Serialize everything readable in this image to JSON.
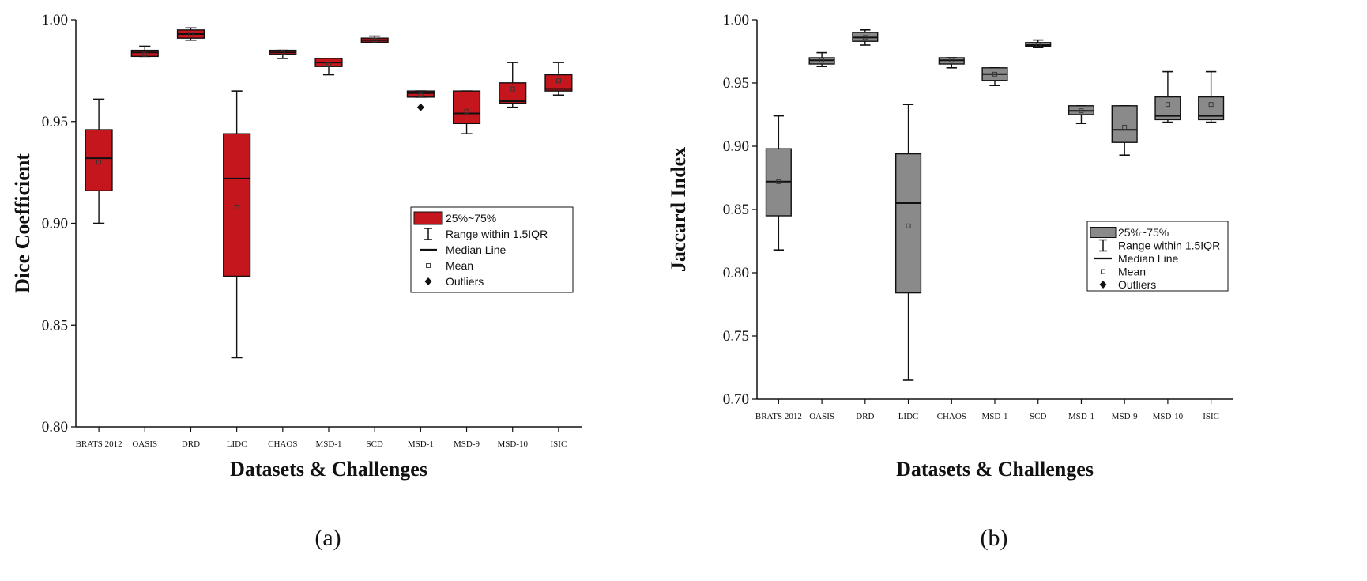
{
  "chart_data": [
    {
      "type": "box",
      "panel_label": "(a)",
      "ylabel": "Dice Coefficient",
      "xlabel": "Datasets & Challenges",
      "ylim": [
        0.8,
        1.0
      ],
      "y_ticks": [
        "0.80",
        "0.85",
        "0.90",
        "0.95",
        "1.00"
      ],
      "categories": [
        "BRATS 2012",
        "OASIS",
        "DRD",
        "LIDC",
        "CHAOS",
        "MSD-1",
        "SCD",
        "MSD-1",
        "MSD-9",
        "MSD-10",
        "ISIC"
      ],
      "box_color": "#c4161c",
      "boxes": [
        {
          "whisker_low": 0.9,
          "q1": 0.916,
          "median": 0.932,
          "q3": 0.946,
          "whisker_high": 0.961,
          "mean": 0.93,
          "outliers": []
        },
        {
          "whisker_low": 0.982,
          "q1": 0.982,
          "median": 0.984,
          "q3": 0.985,
          "whisker_high": 0.987,
          "mean": 0.983,
          "outliers": []
        },
        {
          "whisker_low": 0.99,
          "q1": 0.991,
          "median": 0.993,
          "q3": 0.995,
          "whisker_high": 0.996,
          "mean": 0.993,
          "outliers": []
        },
        {
          "whisker_low": 0.834,
          "q1": 0.874,
          "median": 0.922,
          "q3": 0.944,
          "whisker_high": 0.965,
          "mean": 0.908,
          "outliers": []
        },
        {
          "whisker_low": 0.981,
          "q1": 0.983,
          "median": 0.984,
          "q3": 0.985,
          "whisker_high": 0.985,
          "mean": 0.984,
          "outliers": []
        },
        {
          "whisker_low": 0.973,
          "q1": 0.977,
          "median": 0.979,
          "q3": 0.981,
          "whisker_high": 0.981,
          "mean": 0.978,
          "outliers": []
        },
        {
          "whisker_low": 0.989,
          "q1": 0.989,
          "median": 0.99,
          "q3": 0.991,
          "whisker_high": 0.992,
          "mean": 0.99,
          "outliers": []
        },
        {
          "whisker_low": 0.962,
          "q1": 0.962,
          "median": 0.964,
          "q3": 0.965,
          "whisker_high": 0.965,
          "mean": 0.963,
          "outliers": [
            0.957
          ]
        },
        {
          "whisker_low": 0.944,
          "q1": 0.949,
          "median": 0.954,
          "q3": 0.965,
          "whisker_high": 0.965,
          "mean": 0.955,
          "outliers": []
        },
        {
          "whisker_low": 0.957,
          "q1": 0.959,
          "median": 0.96,
          "q3": 0.969,
          "whisker_high": 0.979,
          "mean": 0.966,
          "outliers": []
        },
        {
          "whisker_low": 0.963,
          "q1": 0.965,
          "median": 0.966,
          "q3": 0.973,
          "whisker_high": 0.979,
          "mean": 0.97,
          "outliers": []
        }
      ],
      "legend": {
        "position": "right",
        "entries": [
          "25%~75%",
          "Range within 1.5IQR",
          "Median Line",
          "Mean",
          "Outliers"
        ]
      }
    },
    {
      "type": "box",
      "panel_label": "(b)",
      "ylabel": "Jaccard Index",
      "xlabel": "Datasets & Challenges",
      "ylim": [
        0.7,
        1.0
      ],
      "y_ticks": [
        "0.70",
        "0.75",
        "0.80",
        "0.85",
        "0.90",
        "0.95",
        "1.00"
      ],
      "categories": [
        "BRATS 2012",
        "OASIS",
        "DRD",
        "LIDC",
        "CHAOS",
        "MSD-1",
        "SCD",
        "MSD-1",
        "MSD-9",
        "MSD-10",
        "ISIC"
      ],
      "box_color": "#8a8a8a",
      "boxes": [
        {
          "whisker_low": 0.818,
          "q1": 0.845,
          "median": 0.872,
          "q3": 0.898,
          "whisker_high": 0.924,
          "mean": 0.872,
          "outliers": []
        },
        {
          "whisker_low": 0.963,
          "q1": 0.965,
          "median": 0.968,
          "q3": 0.97,
          "whisker_high": 0.974,
          "mean": 0.968,
          "outliers": []
        },
        {
          "whisker_low": 0.98,
          "q1": 0.983,
          "median": 0.986,
          "q3": 0.99,
          "whisker_high": 0.992,
          "mean": 0.986,
          "outliers": []
        },
        {
          "whisker_low": 0.715,
          "q1": 0.784,
          "median": 0.855,
          "q3": 0.894,
          "whisker_high": 0.933,
          "mean": 0.837,
          "outliers": []
        },
        {
          "whisker_low": 0.962,
          "q1": 0.965,
          "median": 0.968,
          "q3": 0.97,
          "whisker_high": 0.97,
          "mean": 0.968,
          "outliers": []
        },
        {
          "whisker_low": 0.948,
          "q1": 0.952,
          "median": 0.957,
          "q3": 0.962,
          "whisker_high": 0.962,
          "mean": 0.957,
          "outliers": []
        },
        {
          "whisker_low": 0.978,
          "q1": 0.979,
          "median": 0.98,
          "q3": 0.982,
          "whisker_high": 0.984,
          "mean": 0.98,
          "outliers": []
        },
        {
          "whisker_low": 0.918,
          "q1": 0.925,
          "median": 0.928,
          "q3": 0.932,
          "whisker_high": 0.932,
          "mean": 0.928,
          "outliers": []
        },
        {
          "whisker_low": 0.893,
          "q1": 0.903,
          "median": 0.913,
          "q3": 0.932,
          "whisker_high": 0.932,
          "mean": 0.915,
          "outliers": []
        },
        {
          "whisker_low": 0.919,
          "q1": 0.921,
          "median": 0.924,
          "q3": 0.939,
          "whisker_high": 0.959,
          "mean": 0.933,
          "outliers": []
        },
        {
          "whisker_low": 0.919,
          "q1": 0.921,
          "median": 0.924,
          "q3": 0.939,
          "whisker_high": 0.959,
          "mean": 0.933,
          "outliers": []
        }
      ],
      "legend": {
        "position": "right",
        "entries": [
          "25%~75%",
          "Range within 1.5IQR",
          "Median Line",
          "Mean",
          "Outliers"
        ]
      }
    }
  ]
}
